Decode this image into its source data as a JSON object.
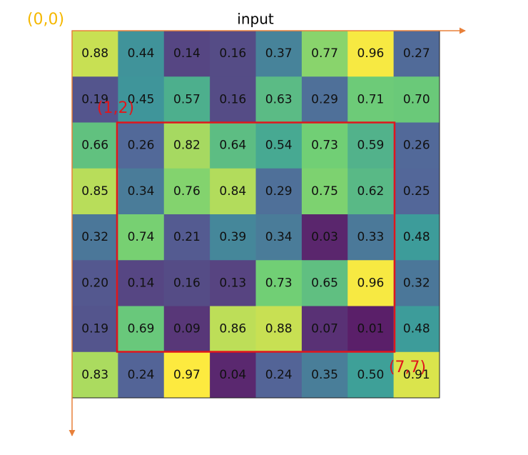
{
  "title": "input",
  "origin_label": "(0,0)",
  "box_start_label": "(1,2)",
  "box_end_label": "(7,7)",
  "grid": {
    "rows": [
      [
        "0.88",
        "0.44",
        "0.14",
        "0.16",
        "0.37",
        "0.77",
        "0.96",
        "0.27"
      ],
      [
        "0.19",
        "0.45",
        "0.57",
        "0.16",
        "0.63",
        "0.29",
        "0.71",
        "0.70"
      ],
      [
        "0.66",
        "0.26",
        "0.82",
        "0.64",
        "0.54",
        "0.73",
        "0.59",
        "0.26"
      ],
      [
        "0.85",
        "0.34",
        "0.76",
        "0.84",
        "0.29",
        "0.75",
        "0.62",
        "0.25"
      ],
      [
        "0.32",
        "0.74",
        "0.21",
        "0.39",
        "0.34",
        "0.03",
        "0.33",
        "0.48"
      ],
      [
        "0.20",
        "0.14",
        "0.16",
        "0.13",
        "0.73",
        "0.65",
        "0.96",
        "0.32"
      ],
      [
        "0.19",
        "0.69",
        "0.09",
        "0.86",
        "0.88",
        "0.07",
        "0.01",
        "0.48"
      ],
      [
        "0.83",
        "0.24",
        "0.97",
        "0.04",
        "0.24",
        "0.35",
        "0.50",
        "0.91"
      ]
    ]
  }
}
